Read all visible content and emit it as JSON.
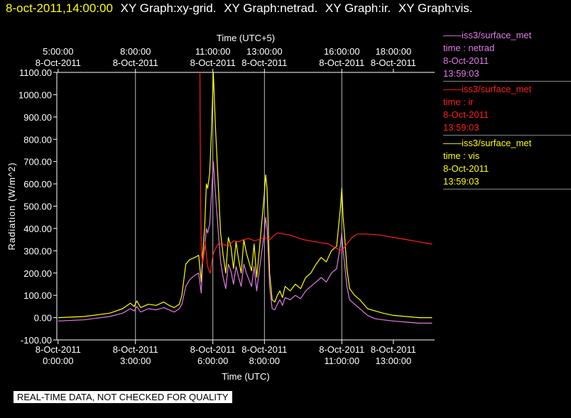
{
  "header": {
    "timestamp": "8-oct-2011,14:00:00",
    "graph_titles": [
      "XY Graph:xy-grid.",
      "XY Graph:netrad.",
      "XY Graph:ir.",
      "XY Graph:vis."
    ]
  },
  "legend": [
    {
      "source": "——iss3/surface_met",
      "var": "time : netrad",
      "date": "8-Oct-2011",
      "time": "13:59:03",
      "color": "#e27be6"
    },
    {
      "source": "——iss3/surface_met",
      "var": "time : ir",
      "date": "8-Oct-2011",
      "time": "13:59:03",
      "color": "#ff2020"
    },
    {
      "source": "——iss3/surface_met",
      "var": "time : vis",
      "date": "8-Oct-2011",
      "time": "13:59:03",
      "color": "#ffff00"
    }
  ],
  "disclaimer": "REAL-TIME DATA, NOT CHECKED FOR QUALITY",
  "chart_data": {
    "type": "line",
    "xlabel": "Time (UTC)",
    "x2label": "Time (UTC+5)",
    "ylabel": "Radiation (W/m^2)",
    "xlim": [
      -0.05,
      14.6
    ],
    "ylim": [
      -100,
      1100
    ],
    "y_ticks": [
      -100,
      0,
      100,
      200,
      300,
      400,
      500,
      600,
      700,
      800,
      900,
      1000,
      1100
    ],
    "y_tick_labels": [
      "-100.00",
      "0.00",
      "100.00",
      "200.00",
      "300.00",
      "400.00",
      "500.00",
      "600.00",
      "700.00",
      "800.00",
      "900.00",
      "1000.00",
      "1100.00"
    ],
    "x_ticks": [
      {
        "x": 0,
        "date": "8-Oct-2011",
        "time": "0:00:00"
      },
      {
        "x": 3,
        "date": "8-Oct-2011",
        "time": "3:00:00"
      },
      {
        "x": 6,
        "date": "8-Oct-2011",
        "time": "6:00:00"
      },
      {
        "x": 8,
        "date": "8-Oct-2011",
        "time": "8:00:00"
      },
      {
        "x": 11,
        "date": "8-Oct-2011",
        "time": "11:00:00"
      },
      {
        "x": 13,
        "date": "8-Oct-2011",
        "time": "13:00:00"
      }
    ],
    "x2_ticks": [
      {
        "x": 0,
        "time": "5:00:00",
        "date": "8-Oct-2011"
      },
      {
        "x": 3,
        "time": "8:00:00",
        "date": "8-Oct-2011"
      },
      {
        "x": 6,
        "time": "11:00:00",
        "date": "8-Oct-2011"
      },
      {
        "x": 8,
        "time": "13:00:00",
        "date": "8-Oct-2011"
      },
      {
        "x": 11,
        "time": "16:00:00",
        "date": "8-Oct-2011"
      },
      {
        "x": 13,
        "time": "18:00:00",
        "date": "8-Oct-2011"
      }
    ],
    "grid_x": [
      3,
      6,
      8,
      11
    ],
    "series": [
      {
        "name": "time : vis",
        "color": "#ffff00",
        "x": [
          0,
          1,
          2,
          2.5,
          2.8,
          2.95,
          3.05,
          3.2,
          3.5,
          3.8,
          4.1,
          4.3,
          4.5,
          4.7,
          4.8,
          4.95,
          5.1,
          5.3,
          5.45,
          5.55,
          5.6,
          5.68,
          5.75,
          5.8,
          5.88,
          5.95,
          6.02,
          6.1,
          6.2,
          6.3,
          6.4,
          6.5,
          6.6,
          6.7,
          6.8,
          6.9,
          7.0,
          7.1,
          7.2,
          7.3,
          7.4,
          7.5,
          7.6,
          7.7,
          7.8,
          7.9,
          8.0,
          8.05,
          8.1,
          8.15,
          8.2,
          8.3,
          8.4,
          8.5,
          8.6,
          8.7,
          8.8,
          9.0,
          9.2,
          9.4,
          9.6,
          9.8,
          10.0,
          10.2,
          10.4,
          10.6,
          10.8,
          10.95,
          11.0,
          11.05,
          11.1,
          11.2,
          11.3,
          11.5,
          11.7,
          12.0,
          12.3,
          12.6,
          13.0,
          13.5,
          14.0,
          14.5
        ],
        "values": [
          0,
          5,
          20,
          40,
          65,
          50,
          75,
          45,
          60,
          55,
          70,
          55,
          45,
          60,
          100,
          240,
          260,
          270,
          280,
          160,
          280,
          400,
          600,
          580,
          650,
          850,
          1100,
          860,
          620,
          380,
          280,
          200,
          360,
          320,
          220,
          340,
          260,
          200,
          350,
          290,
          250,
          210,
          330,
          180,
          300,
          430,
          560,
          640,
          580,
          400,
          200,
          80,
          70,
          100,
          120,
          90,
          140,
          120,
          150,
          130,
          180,
          200,
          240,
          270,
          250,
          300,
          320,
          500,
          580,
          450,
          380,
          220,
          130,
          100,
          80,
          40,
          30,
          20,
          10,
          5,
          0,
          0
        ]
      },
      {
        "name": "time : netrad",
        "color": "#e27be6",
        "x": [
          0,
          1,
          2,
          2.5,
          2.8,
          2.95,
          3.05,
          3.2,
          3.5,
          3.8,
          4.1,
          4.3,
          4.5,
          4.7,
          4.8,
          4.95,
          5.1,
          5.3,
          5.45,
          5.55,
          5.6,
          5.68,
          5.75,
          5.8,
          5.88,
          5.95,
          6.02,
          6.1,
          6.2,
          6.3,
          6.4,
          6.5,
          6.6,
          6.7,
          6.8,
          6.9,
          7.0,
          7.1,
          7.2,
          7.3,
          7.4,
          7.5,
          7.6,
          7.7,
          7.8,
          7.9,
          8.0,
          8.05,
          8.1,
          8.15,
          8.2,
          8.3,
          8.4,
          8.5,
          8.6,
          8.7,
          8.8,
          9.0,
          9.2,
          9.4,
          9.6,
          9.8,
          10.0,
          10.2,
          10.4,
          10.6,
          10.8,
          10.95,
          11.0,
          11.05,
          11.1,
          11.2,
          11.3,
          11.5,
          11.7,
          12.0,
          12.3,
          12.6,
          13.0,
          13.5,
          14.0,
          14.5
        ],
        "values": [
          -15,
          -10,
          5,
          20,
          40,
          30,
          50,
          25,
          40,
          35,
          45,
          35,
          25,
          40,
          60,
          140,
          170,
          190,
          200,
          110,
          240,
          310,
          400,
          380,
          420,
          560,
          700,
          560,
          400,
          250,
          180,
          130,
          240,
          210,
          150,
          230,
          180,
          140,
          240,
          200,
          170,
          140,
          230,
          120,
          210,
          300,
          380,
          450,
          400,
          280,
          140,
          40,
          35,
          60,
          80,
          55,
          90,
          80,
          100,
          85,
          120,
          140,
          160,
          180,
          160,
          200,
          220,
          330,
          380,
          300,
          250,
          140,
          80,
          60,
          40,
          10,
          -5,
          -10,
          -15,
          -20,
          -25,
          -25
        ]
      },
      {
        "name": "time : ir",
        "color": "#ff2020",
        "x": [
          5.5,
          5.52,
          5.55,
          5.6,
          5.65,
          5.7,
          5.75,
          5.8,
          5.85,
          5.9,
          6.0,
          6.1,
          6.2,
          6.4,
          6.6,
          6.8,
          7.0,
          7.2,
          7.4,
          7.6,
          7.8,
          8.0,
          8.2,
          8.5,
          9.0,
          9.5,
          10.0,
          10.5,
          10.8,
          11.0,
          11.2,
          11.4,
          11.6,
          12.0,
          12.5,
          13.0,
          13.5,
          14.0,
          14.5
        ],
        "values": [
          1100,
          600,
          300,
          240,
          300,
          340,
          280,
          230,
          210,
          200,
          280,
          310,
          330,
          330,
          320,
          345,
          340,
          350,
          355,
          345,
          350,
          360,
          350,
          380,
          370,
          350,
          340,
          330,
          310,
          300,
          330,
          360,
          375,
          375,
          370,
          360,
          350,
          340,
          330
        ]
      }
    ]
  }
}
